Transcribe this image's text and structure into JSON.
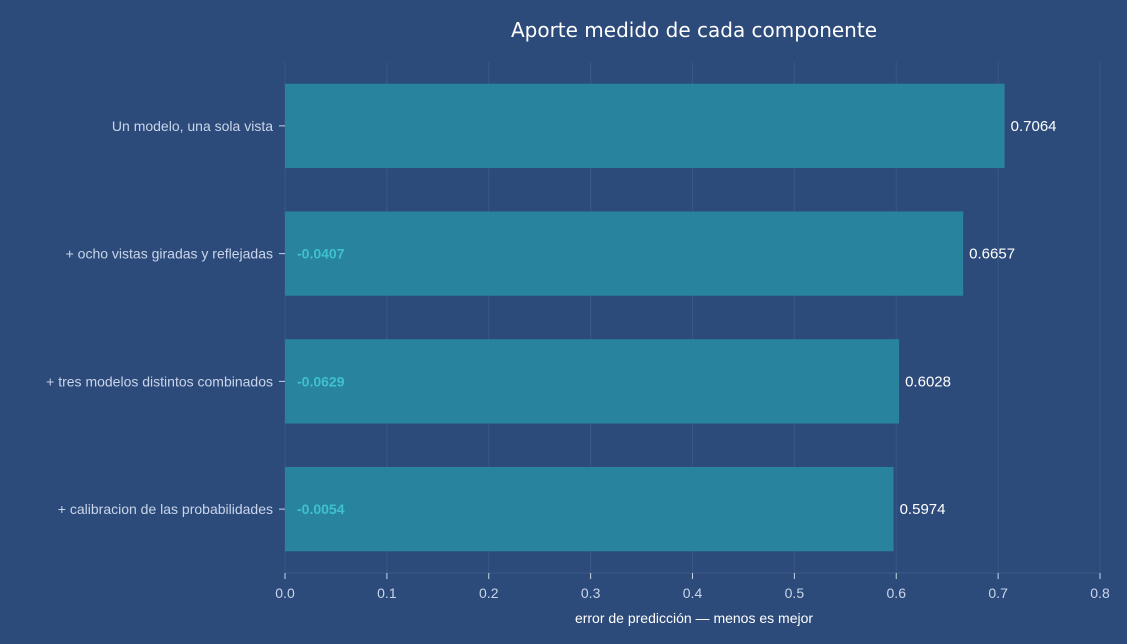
{
  "chart_data": {
    "type": "bar",
    "orientation": "horizontal",
    "title": "Aporte medido de cada componente",
    "xlabel": "error de predicción — menos es mejor",
    "ylabel": "",
    "xlim": [
      0,
      0.8
    ],
    "xticks": [
      "0.0",
      "0.1",
      "0.2",
      "0.3",
      "0.4",
      "0.5",
      "0.6",
      "0.7",
      "0.8"
    ],
    "grid": true,
    "categories": [
      "Un modelo, una sola vista",
      "+ ocho vistas giradas y reflejadas",
      "+ tres modelos distintos combinados",
      "+ calibracion de las probabilidades"
    ],
    "values": [
      0.7064,
      0.6657,
      0.6028,
      0.5974
    ],
    "value_labels": [
      "0.7064",
      "0.6657",
      "0.6028",
      "0.5974"
    ],
    "deltas": [
      "",
      "-0.0407",
      "-0.0629",
      "-0.0054"
    ]
  },
  "colors": {
    "background": "#2c4a7a",
    "bar": "#28839e",
    "delta_text": "#3fc0d0"
  }
}
